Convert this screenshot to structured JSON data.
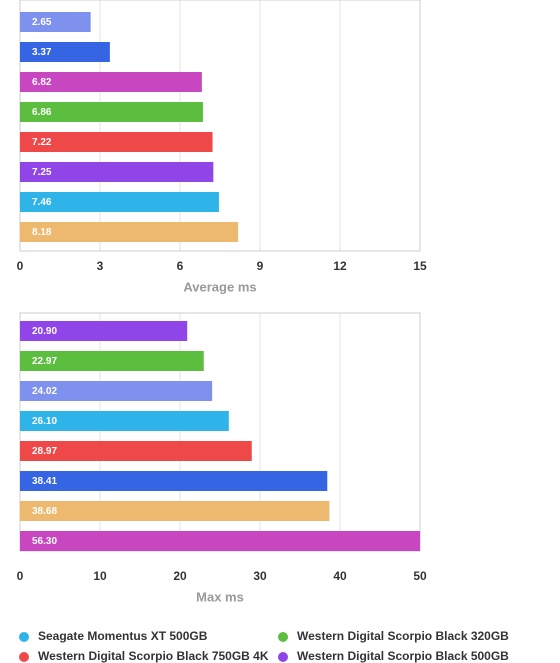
{
  "chart_data": [
    {
      "type": "bar",
      "orientation": "horizontal",
      "xlabel": "Average ms",
      "values": [
        2.65,
        3.37,
        6.82,
        6.86,
        7.22,
        7.25,
        7.46,
        8.18
      ],
      "colors": [
        "#7f91ee",
        "#3565e2",
        "#c846c0",
        "#5cbe3e",
        "#ef4848",
        "#9045e8",
        "#2fb4ea",
        "#ecb96f"
      ],
      "xlim": [
        0,
        15
      ],
      "xticks": [
        0,
        3,
        6,
        9,
        12,
        15
      ],
      "grid": true
    },
    {
      "type": "bar",
      "orientation": "horizontal",
      "xlabel": "Max ms",
      "values": [
        20.9,
        22.97,
        24.02,
        26.1,
        28.97,
        38.41,
        38.68,
        56.3
      ],
      "value_labels": [
        "20.90",
        "22.97",
        "24.02",
        "26.10",
        "28.97",
        "38.41",
        "38.68",
        "56.30"
      ],
      "colors": [
        "#9045e8",
        "#5cbe3e",
        "#7f91ee",
        "#2fb4ea",
        "#ef4848",
        "#3565e2",
        "#ecb96f",
        "#c846c0"
      ],
      "xlim": [
        0,
        50
      ],
      "xticks": [
        0,
        10,
        20,
        30,
        40,
        50
      ],
      "grid": true
    }
  ],
  "legend": [
    {
      "name": "Seagate Momentus XT 500GB",
      "color": "#2fb4ea"
    },
    {
      "name": "Western Digital Scorpio Black 320GB",
      "color": "#5cbe3e"
    },
    {
      "name": "Western Digital Scorpio Black 750GB 4K",
      "color": "#ef4848"
    },
    {
      "name": "Western Digital Scorpio Black 500GB",
      "color": "#9045e8"
    }
  ]
}
